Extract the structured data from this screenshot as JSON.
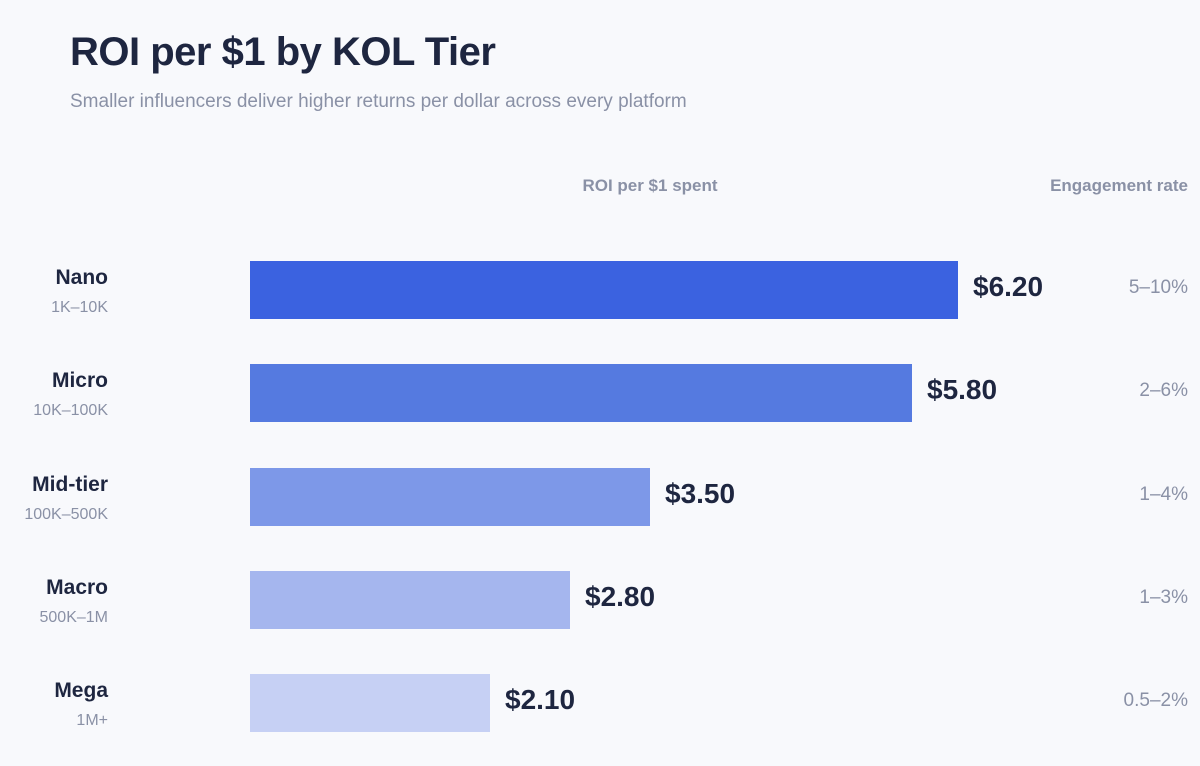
{
  "chart_data": {
    "type": "bar",
    "orientation": "horizontal",
    "title": "ROI per $1 by KOL Tier",
    "subtitle": "Smaller influencers deliver higher returns per dollar across every platform",
    "value_header": "ROI per $1 spent",
    "engagement_header": "Engagement rate",
    "xlim": [
      0,
      7
    ],
    "grid": false,
    "categories": [
      {
        "name": "Nano",
        "range": "1K–10K",
        "value": 6.2,
        "value_label": "$6.20",
        "engagement": "5–10%",
        "color": "#3b62e0"
      },
      {
        "name": "Micro",
        "range": "10K–100K",
        "value": 5.8,
        "value_label": "$5.80",
        "engagement": "2–6%",
        "color": "#557ae0"
      },
      {
        "name": "Mid-tier",
        "range": "100K–500K",
        "value": 3.5,
        "value_label": "$3.50",
        "engagement": "1–4%",
        "color": "#7d98e8"
      },
      {
        "name": "Macro",
        "range": "500K–1M",
        "value": 2.8,
        "value_label": "$2.80",
        "engagement": "1–3%",
        "color": "#a5b6ee"
      },
      {
        "name": "Mega",
        "range": "1M+",
        "value": 2.1,
        "value_label": "$2.10",
        "engagement": "0.5–2%",
        "color": "#c6d0f4"
      }
    ]
  }
}
